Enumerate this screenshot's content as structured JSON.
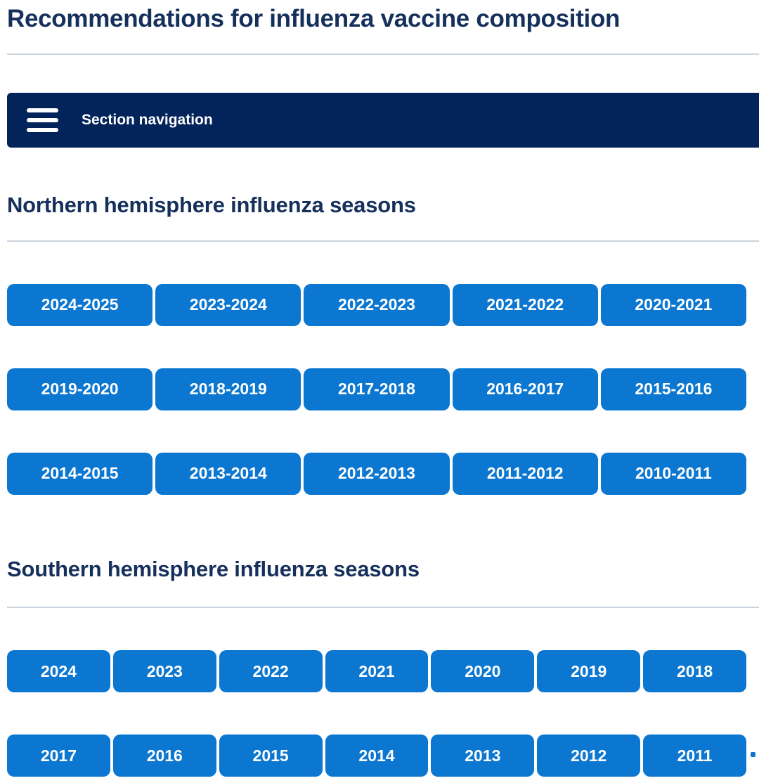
{
  "page": {
    "title": "Recommendations for influenza vaccine composition"
  },
  "section_nav": {
    "label": "Section navigation",
    "icon": "hamburger-menu-icon"
  },
  "northern": {
    "heading": "Northern hemisphere influenza seasons",
    "rows": [
      [
        "2024-2025",
        "2023-2024",
        "2022-2023",
        "2021-2022",
        "2020-2021"
      ],
      [
        "2019-2020",
        "2018-2019",
        "2017-2018",
        "2016-2017",
        "2015-2016"
      ],
      [
        "2014-2015",
        "2013-2014",
        "2012-2013",
        "2011-2012",
        "2010-2011"
      ]
    ]
  },
  "southern": {
    "heading": "Southern hemisphere influenza seasons",
    "rows": [
      [
        "2024",
        "2023",
        "2022",
        "2021",
        "2020",
        "2019",
        "2018"
      ],
      [
        "2017",
        "2016",
        "2015",
        "2014",
        "2013",
        "2012",
        "2011"
      ]
    ]
  },
  "colors": {
    "heading": "#16305c",
    "nav_bg": "#03235b",
    "nav_text": "#ffffff",
    "button_bg": "#0b77d1",
    "button_text": "#ffffff",
    "divider": "#ccd4de"
  }
}
